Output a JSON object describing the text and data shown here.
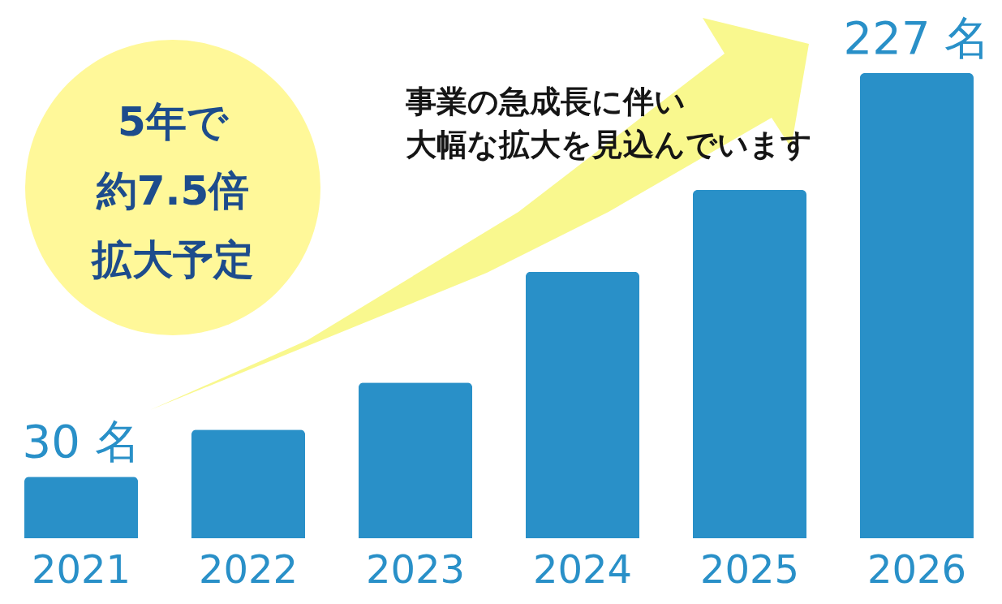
{
  "chart_data": {
    "type": "bar",
    "categories": [
      "2021",
      "2022",
      "2023",
      "2024",
      "2025",
      "2026"
    ],
    "values": [
      30,
      53,
      76,
      130,
      170,
      227
    ],
    "color": "#2990c8",
    "value_labels": [
      "30 名",
      null,
      null,
      null,
      null,
      "227 名"
    ],
    "annotations": [
      "5年で",
      "約7.5倍",
      "拡大予定",
      "事業の急成長に伴い",
      "大幅な拡大を見込んでいます"
    ]
  }
}
